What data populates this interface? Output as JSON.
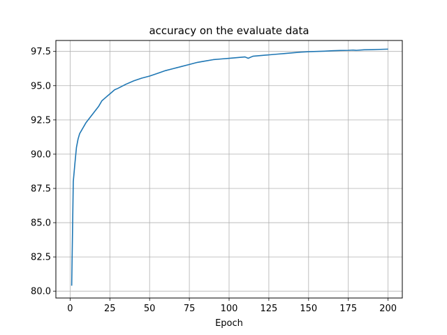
{
  "chart_data": {
    "type": "line",
    "title": "accuracy on the evaluate data",
    "xlabel": "Epoch",
    "ylabel": "",
    "xlim": [
      -8.95,
      208.95
    ],
    "ylim": [
      79.5,
      98.3
    ],
    "xticks": [
      0,
      25,
      50,
      75,
      100,
      125,
      150,
      175,
      200
    ],
    "yticks": [
      80.0,
      82.5,
      85.0,
      87.5,
      90.0,
      92.5,
      95.0,
      97.5
    ],
    "xtick_labels": [
      "0",
      "25",
      "50",
      "75",
      "100",
      "125",
      "150",
      "175",
      "200"
    ],
    "ytick_labels": [
      "80.0",
      "82.5",
      "85.0",
      "87.5",
      "90.0",
      "92.5",
      "95.0",
      "97.5"
    ],
    "grid": true,
    "series_color": "#1f77b4",
    "x": [
      1,
      2,
      3,
      4,
      5,
      6,
      7,
      8,
      9,
      10,
      12,
      14,
      16,
      18,
      20,
      22,
      24,
      26,
      28,
      30,
      35,
      40,
      45,
      50,
      55,
      60,
      65,
      70,
      75,
      80,
      85,
      90,
      95,
      100,
      105,
      110,
      112,
      115,
      120,
      125,
      130,
      135,
      140,
      145,
      150,
      155,
      160,
      165,
      170,
      175,
      178,
      180,
      185,
      190,
      195,
      200
    ],
    "y": [
      80.4,
      88.0,
      89.3,
      90.5,
      91.1,
      91.5,
      91.7,
      91.9,
      92.1,
      92.3,
      92.6,
      92.9,
      93.2,
      93.5,
      93.9,
      94.1,
      94.3,
      94.5,
      94.7,
      94.8,
      95.1,
      95.35,
      95.55,
      95.7,
      95.9,
      96.1,
      96.25,
      96.4,
      96.55,
      96.7,
      96.8,
      96.9,
      96.95,
      97.0,
      97.05,
      97.1,
      97.0,
      97.15,
      97.2,
      97.25,
      97.3,
      97.35,
      97.4,
      97.45,
      97.48,
      97.5,
      97.52,
      97.55,
      97.57,
      97.58,
      97.6,
      97.58,
      97.62,
      97.63,
      97.65,
      97.67
    ]
  }
}
